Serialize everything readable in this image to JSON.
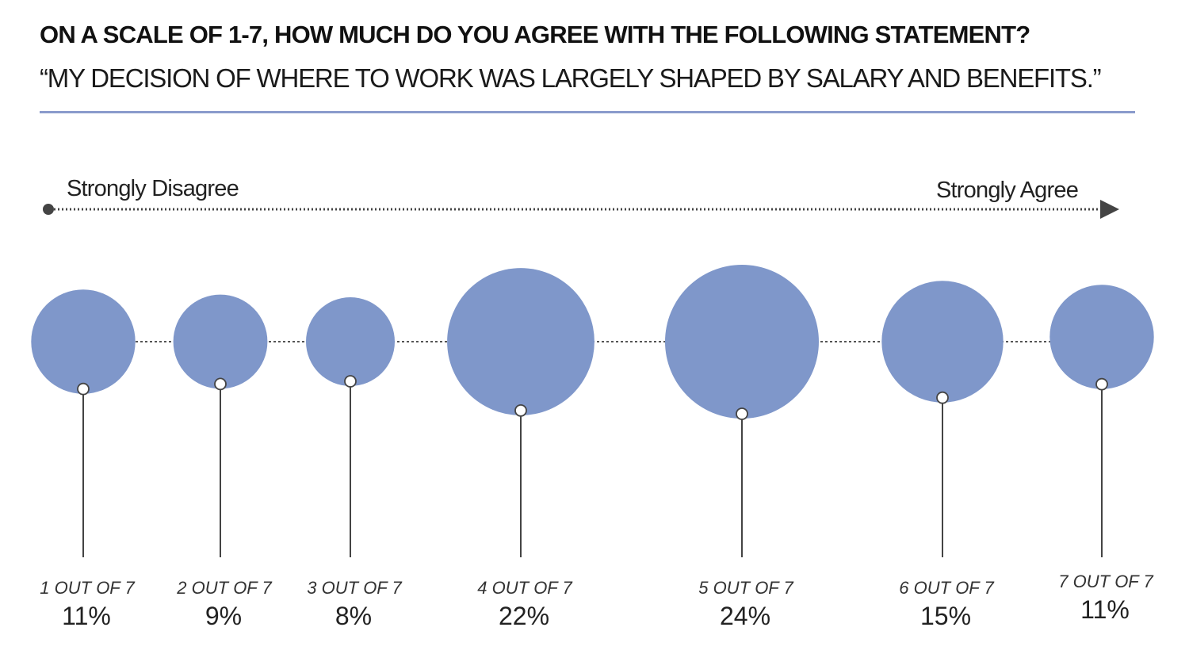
{
  "header": {
    "title": "ON A SCALE OF 1-7, HOW MUCH DO YOU AGREE WITH THE FOLLOWING STATEMENT?",
    "subtitle": "“MY DECISION OF WHERE TO WORK WAS  LARGELY SHAPED BY SALARY AND BENEFITS.”"
  },
  "scale": {
    "left_label": "Strongly Disagree",
    "right_label": "Strongly Agree"
  },
  "colors": {
    "bubble": "#7f97ca",
    "rule": "#8a9bcc",
    "axis": "#444444"
  },
  "chart_data": {
    "type": "bubble",
    "categories": [
      "1 OUT OF 7",
      "2 OUT OF 7",
      "3 OUT OF 7",
      "4 OUT OF 7",
      "5 OUT OF 7",
      "6 OUT OF 7",
      "7 OUT OF 7"
    ],
    "value_labels": [
      "11%",
      "9%",
      "8%",
      "22%",
      "24%",
      "15%",
      "11%"
    ],
    "values": [
      11,
      9,
      8,
      22,
      24,
      15,
      11
    ],
    "unit": "%"
  }
}
